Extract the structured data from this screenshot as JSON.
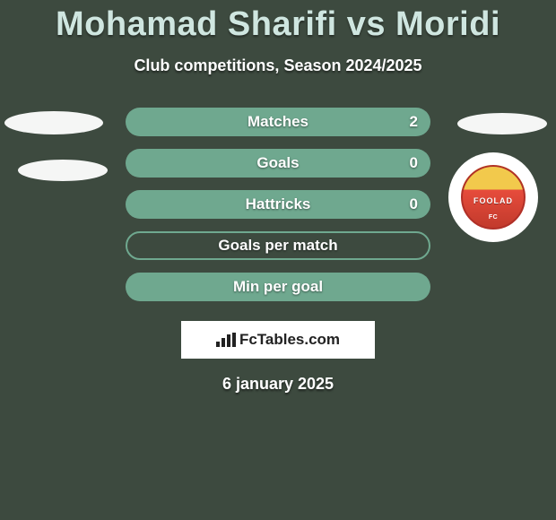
{
  "colors": {
    "background": "#3d4a3f",
    "title": "#cfe6e0",
    "stat_fill": "#6fa88f",
    "stat_border": "#6fa88f",
    "text": "#ffffff"
  },
  "header": {
    "title": "Mohamad Sharifi vs Moridi",
    "subtitle": "Club competitions, Season 2024/2025"
  },
  "stats": [
    {
      "label": "Matches",
      "variant": "filled",
      "value_right": "2"
    },
    {
      "label": "Goals",
      "variant": "filled",
      "value_right": "0"
    },
    {
      "label": "Hattricks",
      "variant": "filled",
      "value_right": "0"
    },
    {
      "label": "Goals per match",
      "variant": "bordered",
      "value_right": ""
    },
    {
      "label": "Min per goal",
      "variant": "filled",
      "value_right": ""
    }
  ],
  "badge": {
    "name": "FOOLAD",
    "sub": "FC"
  },
  "footer": {
    "brand": "FcTables.com",
    "date": "6 january 2025"
  }
}
